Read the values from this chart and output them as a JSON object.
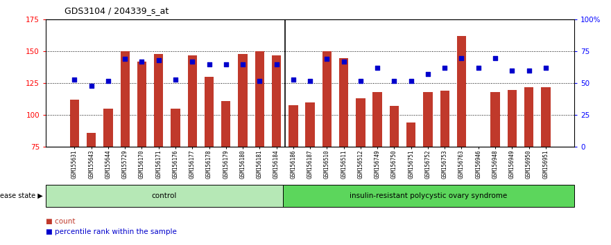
{
  "title": "GDS3104 / 204339_s_at",
  "samples": [
    "GSM155631",
    "GSM155643",
    "GSM155644",
    "GSM155729",
    "GSM156170",
    "GSM156171",
    "GSM156176",
    "GSM156177",
    "GSM156178",
    "GSM156179",
    "GSM156180",
    "GSM156181",
    "GSM156184",
    "GSM156186",
    "GSM156187",
    "GSM156510",
    "GSM156511",
    "GSM156512",
    "GSM156749",
    "GSM156750",
    "GSM156751",
    "GSM156752",
    "GSM156753",
    "GSM156763",
    "GSM156946",
    "GSM156948",
    "GSM156949",
    "GSM156950",
    "GSM156951"
  ],
  "bar_values": [
    112,
    86,
    105,
    150,
    142,
    148,
    105,
    147,
    130,
    111,
    148,
    150,
    147,
    108,
    110,
    150,
    145,
    113,
    118,
    107,
    94,
    118,
    119,
    162,
    74,
    118,
    120,
    122,
    122
  ],
  "percentile_values": [
    53,
    48,
    52,
    69,
    67,
    68,
    53,
    67,
    65,
    65,
    65,
    52,
    65,
    53,
    52,
    69,
    67,
    52,
    62,
    52,
    52,
    57,
    62,
    70,
    62,
    70,
    60,
    60,
    62
  ],
  "group_labels": [
    "control",
    "insulin-resistant polycystic ovary syndrome"
  ],
  "group_sizes": [
    13,
    16
  ],
  "group_colors": [
    "#90EE90",
    "#3CB371"
  ],
  "bar_color": "#C0392B",
  "percentile_color": "#0000CC",
  "bar_bottom": 75,
  "ylim_left": [
    75,
    175
  ],
  "ylim_right": [
    0,
    100
  ],
  "yticks_left": [
    75,
    100,
    125,
    150,
    175
  ],
  "yticks_right": [
    0,
    25,
    50,
    75,
    100
  ],
  "ytick_labels_right": [
    "0",
    "25",
    "50",
    "75",
    "100%"
  ],
  "grid_values": [
    100,
    125,
    150
  ],
  "disease_state_label": "disease state",
  "legend_count_label": "count",
  "legend_percentile_label": "percentile rank within the sample",
  "bg_color": "#f0f0f0"
}
